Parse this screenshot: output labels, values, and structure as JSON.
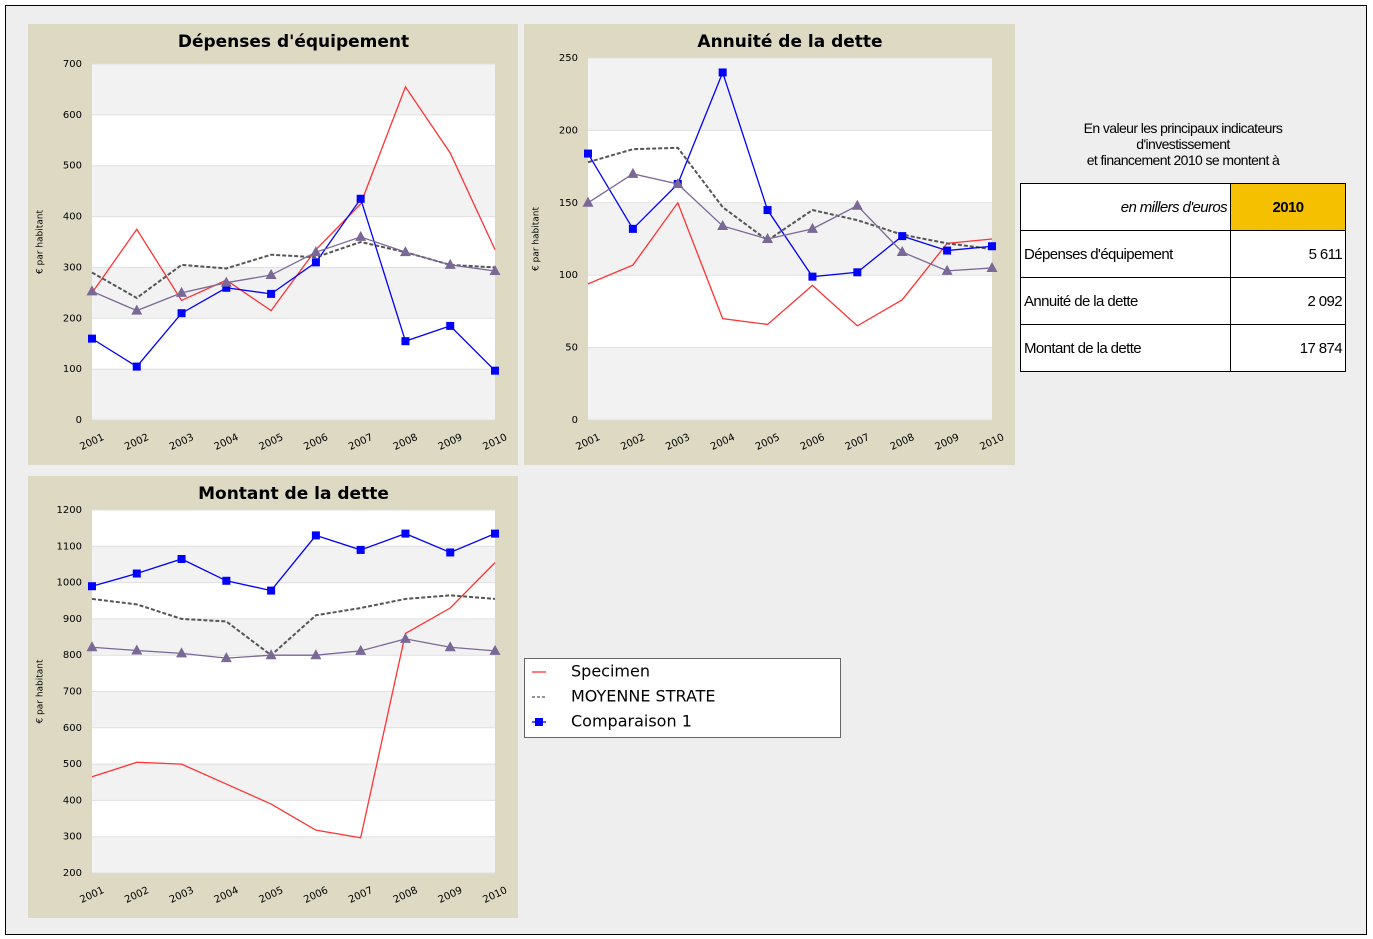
{
  "chart_data": [
    {
      "type": "line",
      "title": "Dépenses d'équipement",
      "y_label": "€ par habitant",
      "categories": [
        "2001",
        "2002",
        "2003",
        "2004",
        "2005",
        "2006",
        "2007",
        "2008",
        "2009",
        "2010"
      ],
      "ylim": [
        0,
        700
      ],
      "yticks": [
        0,
        100,
        200,
        300,
        400,
        500,
        600,
        700
      ],
      "grid": true,
      "series": [
        {
          "name": "Specimen",
          "color": "#ff3333",
          "values": [
            250,
            375,
            235,
            275,
            215,
            335,
            425,
            655,
            525,
            335
          ]
        },
        {
          "name": "MOYENNE STRATE",
          "color": "#555555",
          "dash": true,
          "values": [
            290,
            240,
            305,
            298,
            325,
            320,
            350,
            330,
            305,
            300
          ]
        },
        {
          "name": "Comparaison 1",
          "color": "#0000ff",
          "marker": "square",
          "values": [
            160,
            105,
            210,
            260,
            248,
            310,
            435,
            155,
            185,
            97
          ]
        },
        {
          "color": "#7a6896",
          "marker": "triangle",
          "values": [
            253,
            215,
            250,
            270,
            285,
            330,
            360,
            330,
            305,
            293
          ]
        }
      ]
    },
    {
      "type": "line",
      "title": "Annuité de la dette",
      "y_label": "€ par habitant",
      "categories": [
        "2001",
        "2002",
        "2003",
        "2004",
        "2005",
        "2006",
        "2007",
        "2008",
        "2009",
        "2010"
      ],
      "ylim": [
        0,
        250
      ],
      "yticks": [
        0,
        50,
        100,
        150,
        200,
        250
      ],
      "grid": true,
      "series": [
        {
          "name": "Specimen",
          "color": "#ff3333",
          "values": [
            94,
            107,
            150,
            70,
            66,
            93,
            65,
            83,
            122,
            125
          ]
        },
        {
          "name": "MOYENNE STRATE",
          "color": "#555555",
          "dash": true,
          "values": [
            178,
            187,
            188,
            147,
            124,
            145,
            138,
            128,
            122,
            118
          ]
        },
        {
          "name": "Comparaison 1",
          "color": "#0000ff",
          "marker": "square",
          "values": [
            184,
            132,
            163,
            240,
            145,
            99,
            102,
            127,
            117,
            120
          ]
        },
        {
          "color": "#7a6896",
          "marker": "triangle",
          "values": [
            150,
            170,
            163,
            134,
            125,
            132,
            148,
            116,
            103,
            105
          ]
        }
      ]
    },
    {
      "type": "line",
      "title": "Montant de la dette",
      "y_label": "€ par habitant",
      "categories": [
        "2001",
        "2002",
        "2003",
        "2004",
        "2005",
        "2006",
        "2007",
        "2008",
        "2009",
        "2010"
      ],
      "ylim": [
        200,
        1200
      ],
      "yticks": [
        200,
        300,
        400,
        500,
        600,
        700,
        800,
        900,
        1000,
        1100,
        1200
      ],
      "grid": true,
      "series": [
        {
          "name": "Specimen",
          "color": "#ff3333",
          "values": [
            465,
            505,
            500,
            445,
            390,
            318,
            297,
            860,
            930,
            1055
          ]
        },
        {
          "name": "MOYENNE STRATE",
          "color": "#555555",
          "dash": true,
          "values": [
            955,
            940,
            900,
            893,
            800,
            910,
            930,
            955,
            965,
            955
          ]
        },
        {
          "name": "Comparaison 1",
          "color": "#0000ff",
          "marker": "square",
          "values": [
            990,
            1025,
            1065,
            1005,
            978,
            1130,
            1090,
            1135,
            1083,
            1135
          ]
        },
        {
          "color": "#7a6896",
          "marker": "triangle",
          "values": [
            822,
            813,
            805,
            792,
            800,
            800,
            812,
            845,
            822,
            812
          ]
        }
      ]
    }
  ],
  "table": {
    "intro": [
      "En valeur les principaux indicateurs",
      "d'investissement",
      "et financement 2010 se montent à"
    ],
    "header": [
      "en millers d'euros",
      "2010"
    ],
    "rows": [
      [
        "Dépenses d'équipement",
        "5 611"
      ],
      [
        "Annuité de la dette",
        "2 092"
      ],
      [
        "Montant de la dette",
        "17 874"
      ]
    ]
  }
}
